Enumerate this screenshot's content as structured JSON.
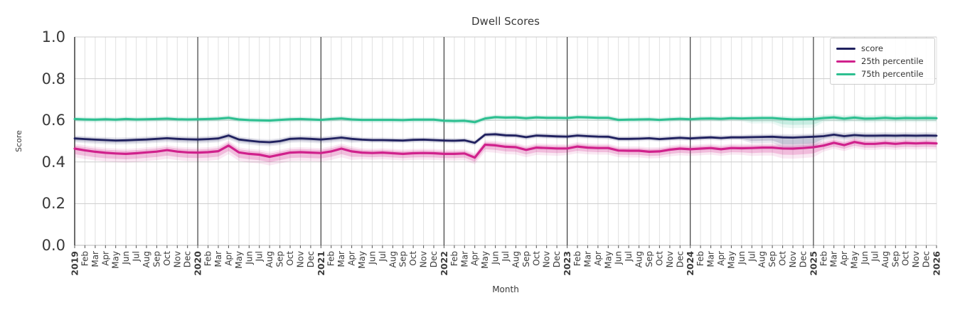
{
  "chart_data": {
    "type": "line",
    "title": "Dwell Scores",
    "xlabel": "Month",
    "ylabel": "Score",
    "ylim": [
      0.0,
      1.0
    ],
    "y_ticks": [
      "0.0",
      "0.2",
      "0.4",
      "0.6",
      "0.8",
      "1.0"
    ],
    "grid": true,
    "legend_position": "upper right",
    "x_range": "Jan 2019 - Jan 2026 (monthly)",
    "year_line_indices": [
      0,
      12,
      24,
      36,
      48,
      60,
      72
    ],
    "x_tick_labels": [
      "2019",
      "Feb",
      "Mar",
      "Apr",
      "May",
      "Jun",
      "Jul",
      "Aug",
      "Sep",
      "Oct",
      "Nov",
      "Dec",
      "2020",
      "Feb",
      "Mar",
      "Apr",
      "May",
      "Jun",
      "Jul",
      "Aug",
      "Sep",
      "Oct",
      "Nov",
      "Dec",
      "2021",
      "Feb",
      "Mar",
      "Apr",
      "May",
      "Jun",
      "Jul",
      "Aug",
      "Sep",
      "Oct",
      "Nov",
      "Dec",
      "2022",
      "Feb",
      "Mar",
      "Apr",
      "May",
      "Jun",
      "Jul",
      "Aug",
      "Sep",
      "Oct",
      "Nov",
      "Dec",
      "2023",
      "Feb",
      "Mar",
      "Apr",
      "May",
      "Jun",
      "Jul",
      "Aug",
      "Sep",
      "Oct",
      "Nov",
      "Dec",
      "2024",
      "Feb",
      "Mar",
      "Apr",
      "May",
      "Jun",
      "Jul",
      "Aug",
      "Sep",
      "Oct",
      "Nov",
      "Dec",
      "2025",
      "Feb",
      "Mar",
      "Apr",
      "May",
      "Jun",
      "Jul",
      "Aug",
      "Sep",
      "Oct",
      "Nov",
      "Dec",
      "2026"
    ],
    "series": [
      {
        "name": "score",
        "color": "#20215f",
        "line_width": 2.8,
        "values": [
          0.513,
          0.51,
          0.507,
          0.505,
          0.503,
          0.504,
          0.506,
          0.508,
          0.511,
          0.514,
          0.511,
          0.509,
          0.508,
          0.51,
          0.513,
          0.527,
          0.508,
          0.502,
          0.497,
          0.495,
          0.5,
          0.511,
          0.513,
          0.511,
          0.508,
          0.512,
          0.517,
          0.511,
          0.507,
          0.505,
          0.505,
          0.504,
          0.503,
          0.506,
          0.507,
          0.505,
          0.503,
          0.502,
          0.504,
          0.492,
          0.531,
          0.533,
          0.528,
          0.527,
          0.519,
          0.527,
          0.525,
          0.523,
          0.522,
          0.527,
          0.524,
          0.522,
          0.521,
          0.511,
          0.511,
          0.512,
          0.514,
          0.51,
          0.513,
          0.516,
          0.513,
          0.516,
          0.518,
          0.515,
          0.518,
          0.518,
          0.519,
          0.52,
          0.521,
          0.518,
          0.517,
          0.519,
          0.521,
          0.524,
          0.531,
          0.524,
          0.529,
          0.526,
          0.526,
          0.527,
          0.526,
          0.527,
          0.526,
          0.527,
          0.526
        ],
        "band": {
          "base_lo": 0.008,
          "base_hi": 0.008,
          "opacity": 0.16,
          "overrides": [
            {
              "from": 0,
              "to": 27,
              "lo": 0.012,
              "hi": 0.009
            },
            {
              "from": 66,
              "to": 68,
              "lo": 0.018,
              "hi": 0.009
            },
            {
              "from": 69,
              "to": 72,
              "lo": 0.032,
              "hi": 0.01
            },
            {
              "from": 73,
              "to": 84,
              "lo": 0.012,
              "hi": 0.01
            }
          ]
        }
      },
      {
        "name": "25th percentile",
        "color": "#d0218c",
        "line_width": 3.2,
        "values": [
          0.464,
          0.456,
          0.449,
          0.444,
          0.441,
          0.439,
          0.442,
          0.446,
          0.45,
          0.457,
          0.45,
          0.446,
          0.445,
          0.447,
          0.452,
          0.479,
          0.446,
          0.439,
          0.435,
          0.425,
          0.435,
          0.445,
          0.447,
          0.445,
          0.443,
          0.451,
          0.464,
          0.451,
          0.445,
          0.443,
          0.445,
          0.442,
          0.439,
          0.442,
          0.443,
          0.442,
          0.439,
          0.439,
          0.441,
          0.421,
          0.483,
          0.48,
          0.473,
          0.471,
          0.458,
          0.469,
          0.467,
          0.465,
          0.465,
          0.474,
          0.469,
          0.467,
          0.467,
          0.455,
          0.454,
          0.454,
          0.449,
          0.451,
          0.459,
          0.464,
          0.461,
          0.464,
          0.467,
          0.461,
          0.467,
          0.466,
          0.467,
          0.469,
          0.469,
          0.465,
          0.464,
          0.467,
          0.471,
          0.479,
          0.492,
          0.481,
          0.496,
          0.487,
          0.487,
          0.491,
          0.487,
          0.491,
          0.489,
          0.491,
          0.489
        ],
        "band": {
          "base_lo": 0.02,
          "base_hi": 0.013,
          "opacity": 0.22,
          "overrides": [
            {
              "from": 0,
              "to": 27,
              "lo": 0.026,
              "hi": 0.015
            },
            {
              "from": 40,
              "to": 47,
              "lo": 0.022,
              "hi": 0.013
            },
            {
              "from": 66,
              "to": 68,
              "lo": 0.024,
              "hi": 0.013
            },
            {
              "from": 69,
              "to": 72,
              "lo": 0.03,
              "hi": 0.014
            },
            {
              "from": 73,
              "to": 84,
              "lo": 0.018,
              "hi": 0.014
            }
          ]
        }
      },
      {
        "name": "75th percentile",
        "color": "#2dbf90",
        "line_width": 3.0,
        "values": [
          0.606,
          0.604,
          0.603,
          0.605,
          0.603,
          0.606,
          0.604,
          0.605,
          0.606,
          0.608,
          0.605,
          0.604,
          0.605,
          0.606,
          0.608,
          0.612,
          0.604,
          0.601,
          0.6,
          0.599,
          0.602,
          0.605,
          0.606,
          0.604,
          0.602,
          0.606,
          0.609,
          0.604,
          0.602,
          0.602,
          0.602,
          0.602,
          0.601,
          0.603,
          0.603,
          0.603,
          0.598,
          0.597,
          0.598,
          0.591,
          0.609,
          0.615,
          0.613,
          0.614,
          0.61,
          0.614,
          0.612,
          0.612,
          0.611,
          0.615,
          0.614,
          0.612,
          0.612,
          0.602,
          0.603,
          0.604,
          0.605,
          0.602,
          0.605,
          0.607,
          0.605,
          0.608,
          0.609,
          0.607,
          0.61,
          0.609,
          0.61,
          0.611,
          0.611,
          0.607,
          0.604,
          0.605,
          0.606,
          0.611,
          0.614,
          0.608,
          0.613,
          0.608,
          0.609,
          0.612,
          0.609,
          0.611,
          0.61,
          0.611,
          0.61
        ],
        "band": {
          "base_lo": 0.009,
          "base_hi": 0.008,
          "opacity": 0.18,
          "overrides": [
            {
              "from": 66,
              "to": 68,
              "lo": 0.016,
              "hi": 0.008
            },
            {
              "from": 69,
              "to": 72,
              "lo": 0.026,
              "hi": 0.009
            },
            {
              "from": 73,
              "to": 84,
              "lo": 0.012,
              "hi": 0.01
            }
          ]
        }
      }
    ],
    "colors": {
      "grid_horizontal": "#cccccc",
      "grid_vertical": "#e0e0e0",
      "year_line": "#2e2e2e",
      "tick_text": "#3a3a3a"
    }
  }
}
